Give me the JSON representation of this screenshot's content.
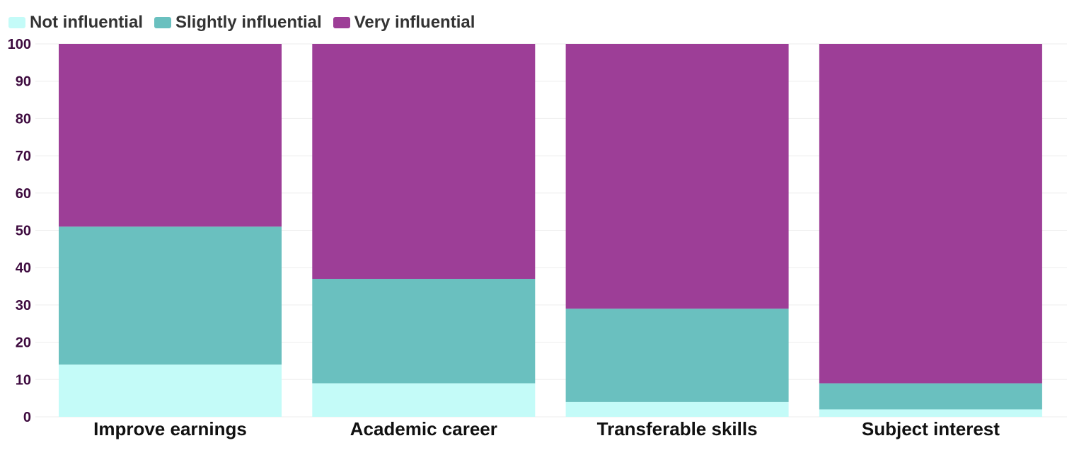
{
  "colors": {
    "not_influential": "#c4fbf8",
    "slightly_influential": "#6ac0bf",
    "very_influential": "#9d3e97",
    "grid": "#eeeeee",
    "tick_text": "#3d0a3e",
    "category_text": "#111111"
  },
  "legend": [
    {
      "label": "Not influential",
      "color": "#c4fbf8"
    },
    {
      "label": "Slightly influential",
      "color": "#6ac0bf"
    },
    {
      "label": "Very influential",
      "color": "#9d3e97"
    }
  ],
  "chart_data": {
    "type": "bar",
    "stacked": true,
    "categories": [
      "Improve earnings",
      "Academic career",
      "Transferable skills",
      "Subject interest"
    ],
    "series": [
      {
        "name": "Not influential",
        "values": [
          14,
          9,
          4,
          2
        ]
      },
      {
        "name": "Slightly influential",
        "values": [
          37,
          28,
          25,
          7
        ]
      },
      {
        "name": "Very influential",
        "values": [
          49,
          63,
          71,
          91
        ]
      }
    ],
    "ylim": [
      0,
      100
    ],
    "yticks": [
      0,
      10,
      20,
      30,
      40,
      50,
      60,
      70,
      80,
      90,
      100
    ],
    "grid": true,
    "legend_position": "top-left"
  }
}
